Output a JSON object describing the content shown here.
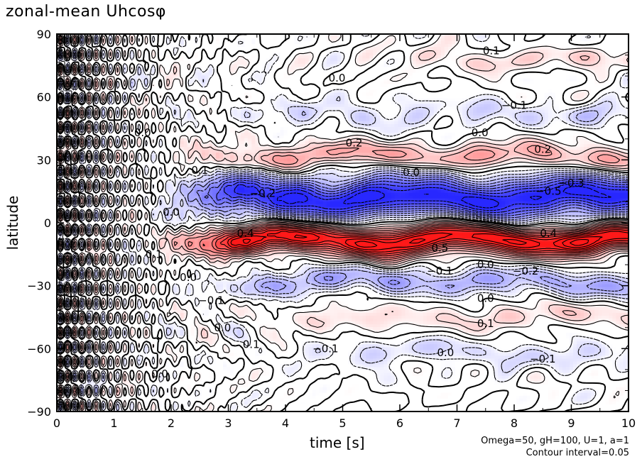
{
  "chart_data": {
    "type": "heatmap",
    "title": "zonal-mean Uhcosφ",
    "xlabel": "time [s]",
    "ylabel": "latitude",
    "xlim": [
      0,
      10
    ],
    "ylim": [
      -90,
      90
    ],
    "x_ticks": [
      "0",
      "1",
      "2",
      "3",
      "4",
      "5",
      "6",
      "7",
      "8",
      "9",
      "10"
    ],
    "y_ticks": [
      "90",
      "60",
      "30",
      "0",
      "−30",
      "−60",
      "−90"
    ],
    "x_tick_values": [
      0,
      1,
      2,
      3,
      4,
      5,
      6,
      7,
      8,
      9,
      10
    ],
    "y_tick_values": [
      90,
      60,
      30,
      0,
      -30,
      -60,
      -90
    ],
    "contour_interval": 0.05,
    "colormap": {
      "negative": "#2b2bff",
      "zero": "#ffffff",
      "positive": "#ff1a1a"
    },
    "features": [
      {
        "name": "strong positive band",
        "t_start": 2.5,
        "t_end": 10,
        "lat_center": -8,
        "lat_halfwidth": 7,
        "amplitude": 0.55
      },
      {
        "name": "strong negative band",
        "t_start": 2.5,
        "t_end": 10,
        "lat_center": 12,
        "lat_halfwidth": 10,
        "amplitude": -0.5
      },
      {
        "name": "positive band north",
        "t_start": 2.5,
        "t_end": 10,
        "lat_center": 32,
        "lat_halfwidth": 6,
        "amplitude": 0.2
      },
      {
        "name": "negative band north",
        "t_start": 3.5,
        "t_end": 10,
        "lat_center": 52,
        "lat_halfwidth": 6,
        "amplitude": -0.1
      },
      {
        "name": "positive band high north",
        "t_start": 6.0,
        "t_end": 10,
        "lat_center": 78,
        "lat_halfwidth": 5,
        "amplitude": 0.1
      },
      {
        "name": "negative band south",
        "t_start": 3.0,
        "t_end": 10,
        "lat_center": -28,
        "lat_halfwidth": 6,
        "amplitude": -0.2
      },
      {
        "name": "positive band south",
        "t_start": 4.0,
        "t_end": 10,
        "lat_center": -45,
        "lat_halfwidth": 6,
        "amplitude": 0.1
      },
      {
        "name": "negative band far south",
        "t_start": 4.5,
        "t_end": 10,
        "lat_center": -62,
        "lat_halfwidth": 6,
        "amplitude": -0.1
      }
    ],
    "contour_labels": [
      {
        "text": "0.1",
        "t": 7.6,
        "lat": 82
      },
      {
        "text": "0.0",
        "t": 4.9,
        "lat": 69
      },
      {
        "text": "−0.1",
        "t": 8.0,
        "lat": 56
      },
      {
        "text": "0.0",
        "t": 7.4,
        "lat": 43
      },
      {
        "text": "0.2",
        "t": 5.2,
        "lat": 38
      },
      {
        "text": "0.2",
        "t": 8.5,
        "lat": 35
      },
      {
        "text": "0.0",
        "t": 6.2,
        "lat": 24
      },
      {
        "text": "−0.3",
        "t": 9.0,
        "lat": 19
      },
      {
        "text": "−0.5",
        "t": 8.6,
        "lat": 15
      },
      {
        "text": "−0.2",
        "t": 3.6,
        "lat": 14
      },
      {
        "text": "0.4",
        "t": 3.3,
        "lat": -5
      },
      {
        "text": "0.4",
        "t": 8.6,
        "lat": -5
      },
      {
        "text": "0.5",
        "t": 6.7,
        "lat": -12
      },
      {
        "text": "0.0",
        "t": 7.5,
        "lat": -20
      },
      {
        "text": "−0.2",
        "t": 8.2,
        "lat": -23
      },
      {
        "text": "−0.1",
        "t": 6.7,
        "lat": -23
      },
      {
        "text": "0.0",
        "t": 7.5,
        "lat": -36
      },
      {
        "text": "0.1",
        "t": 7.5,
        "lat": -48
      },
      {
        "text": "0.0",
        "t": 2.9,
        "lat": -50
      },
      {
        "text": "0.1",
        "t": 3.4,
        "lat": -58
      },
      {
        "text": "−0.1",
        "t": 4.7,
        "lat": -60
      },
      {
        "text": "0.0",
        "t": 6.8,
        "lat": -62
      },
      {
        "text": "−0.1",
        "t": 8.5,
        "lat": -65
      },
      {
        "text": "0.0",
        "t": 1.5,
        "lat": 43
      },
      {
        "text": "0.1",
        "t": 2.5,
        "lat": 25
      },
      {
        "text": "0.0",
        "t": 2.0,
        "lat": 5
      },
      {
        "text": "0.1",
        "t": 1.7,
        "lat": -15
      },
      {
        "text": "0.0",
        "t": 2.3,
        "lat": -26
      },
      {
        "text": "−0.1",
        "t": 2.7,
        "lat": -37
      },
      {
        "text": "0.0",
        "t": 1.8,
        "lat": -72
      }
    ]
  },
  "annotations": {
    "run_params": "Omega=50, gH=100, U=1, a=1",
    "contour_text": "Contour interval=0.05"
  }
}
